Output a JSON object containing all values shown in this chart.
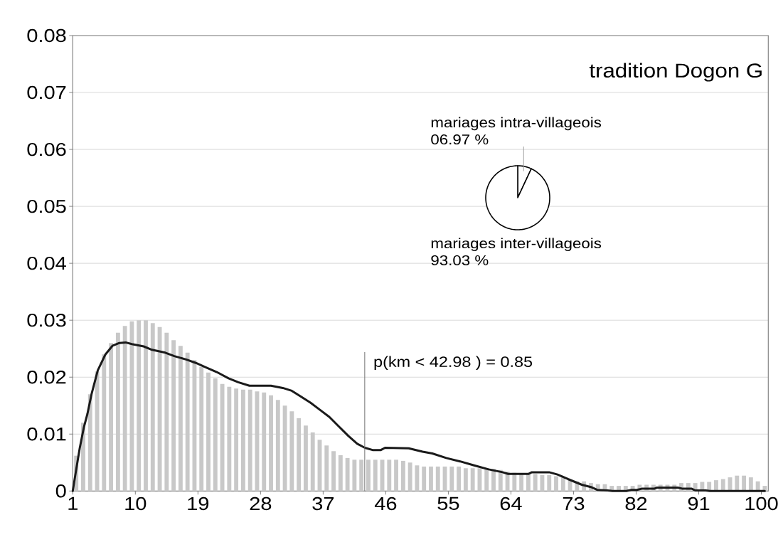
{
  "chart_data": [
    {
      "type": "histogram",
      "title": "tradition Dogon G",
      "series": [
        {
          "type": "histogram",
          "color": "#c8c8c8",
          "bins": [
            1,
            2,
            3,
            4,
            5,
            6,
            7,
            8,
            9,
            10,
            11,
            12,
            13,
            14,
            15,
            16,
            17,
            18,
            19,
            20,
            21,
            22,
            23,
            24,
            25,
            26,
            27,
            28,
            29,
            30,
            31,
            32,
            33,
            34,
            35,
            36,
            37,
            38,
            39,
            40,
            41,
            42,
            43,
            44,
            45,
            46,
            47,
            48,
            49,
            50,
            51,
            52,
            53,
            54,
            55,
            56,
            57,
            58,
            59,
            60,
            61,
            62,
            63,
            64,
            65,
            66,
            67,
            68,
            69,
            70,
            71,
            72,
            73,
            74,
            75,
            76,
            77,
            78,
            79,
            80,
            81,
            82,
            83,
            84,
            85,
            86,
            87,
            88,
            89,
            90,
            91,
            92,
            93,
            94,
            95,
            96,
            97,
            98,
            99,
            100,
            101
          ],
          "values": [
            0.0062,
            0.012,
            0.017,
            0.021,
            0.024,
            0.026,
            0.0278,
            0.029,
            0.0298,
            0.03,
            0.03,
            0.0295,
            0.0288,
            0.0278,
            0.0265,
            0.0255,
            0.0243,
            0.023,
            0.0218,
            0.0208,
            0.0198,
            0.0188,
            0.0183,
            0.018,
            0.0178,
            0.0178,
            0.0175,
            0.0173,
            0.0168,
            0.016,
            0.015,
            0.014,
            0.0128,
            0.0115,
            0.0103,
            0.009,
            0.008,
            0.007,
            0.0063,
            0.0058,
            0.0055,
            0.0055,
            0.0055,
            0.0055,
            0.0055,
            0.0055,
            0.0055,
            0.0053,
            0.005,
            0.0045,
            0.0043,
            0.0043,
            0.0043,
            0.0043,
            0.0043,
            0.0043,
            0.004,
            0.004,
            0.004,
            0.004,
            0.0039,
            0.0037,
            0.0034,
            0.0032,
            0.0031,
            0.003,
            0.003,
            0.0028,
            0.0028,
            0.0026,
            0.0024,
            0.002,
            0.0017,
            0.0017,
            0.0014,
            0.0012,
            0.0012,
            0.0009,
            0.0009,
            0.0009,
            0.0009,
            0.0011,
            0.0011,
            0.0011,
            0.0011,
            0.0011,
            0.0011,
            0.0014,
            0.0014,
            0.0014,
            0.0016,
            0.0016,
            0.0019,
            0.0021,
            0.0024,
            0.0027,
            0.0027,
            0.0024,
            0.0017,
            0.0009
          ]
        },
        {
          "type": "line",
          "color": "#1a1a1a",
          "x": [
            1,
            1.5,
            2,
            2.6,
            3.1,
            3.7,
            4.6,
            5.7,
            6.7,
            7.7,
            8.6,
            9.5,
            11.2,
            12.4,
            14.3,
            15.6,
            17.3,
            18.7,
            20,
            21.7,
            23.4,
            24.8,
            26.4,
            29.5,
            31.2,
            32.5,
            33.8,
            35.2,
            36.5,
            37.9,
            39.2,
            40.6,
            41.9,
            43,
            44.1,
            45.3,
            45.9,
            49.3,
            51.3,
            52.7,
            54.7,
            56.7,
            58.7,
            60.8,
            62.8,
            63.6,
            66.5,
            67,
            69.5,
            70.7,
            72.2,
            74.2,
            75.5,
            76.4,
            77.9,
            78.6,
            80.6,
            81.3,
            82.1,
            82.8,
            84.6,
            85,
            88,
            88.7,
            90,
            90.5,
            92,
            92.6,
            100.5
          ],
          "values": [
            0,
            0.0038,
            0.0075,
            0.0112,
            0.0135,
            0.017,
            0.0212,
            0.024,
            0.0255,
            0.026,
            0.0261,
            0.0258,
            0.0254,
            0.0248,
            0.0243,
            0.0237,
            0.0231,
            0.0225,
            0.0218,
            0.0209,
            0.0198,
            0.0191,
            0.0185,
            0.0185,
            0.0181,
            0.0176,
            0.0166,
            0.0155,
            0.0143,
            0.013,
            0.0114,
            0.0097,
            0.0083,
            0.0076,
            0.0072,
            0.0072,
            0.0076,
            0.0075,
            0.0069,
            0.0066,
            0.0058,
            0.0052,
            0.0045,
            0.0038,
            0.0033,
            0.003,
            0.003,
            0.0033,
            0.0033,
            0.0029,
            0.0021,
            0.0011,
            0.0007,
            0.0002,
            0.0001,
            0,
            0,
            0.0002,
            0.0002,
            0.0004,
            0.0004,
            0.0006,
            0.0006,
            0.0004,
            0.0004,
            0.0001,
            0.0001,
            0,
            0
          ]
        }
      ],
      "xlim": [
        1,
        101
      ],
      "ylim": [
        0,
        0.08
      ],
      "xticks": [
        1,
        10,
        19,
        28,
        37,
        46,
        55,
        64,
        73,
        82,
        91,
        100
      ],
      "yticks": [
        0,
        0.01,
        0.02,
        0.03,
        0.04,
        0.05,
        0.06,
        0.07,
        0.08
      ],
      "grid": "y",
      "ref_lines": [
        {
          "axis": "x",
          "value": 42.98,
          "label": "p(km < 42.98 ) = 0.85",
          "color": "#707070"
        }
      ]
    },
    {
      "type": "pie",
      "categories": [
        "mariages intra-villageois",
        "mariages inter-villageois"
      ],
      "values": [
        6.97,
        93.03
      ],
      "value_labels": [
        "06.97 %",
        "93.03 %"
      ],
      "colors": [
        "#ffffff",
        "#ffffff"
      ]
    }
  ]
}
